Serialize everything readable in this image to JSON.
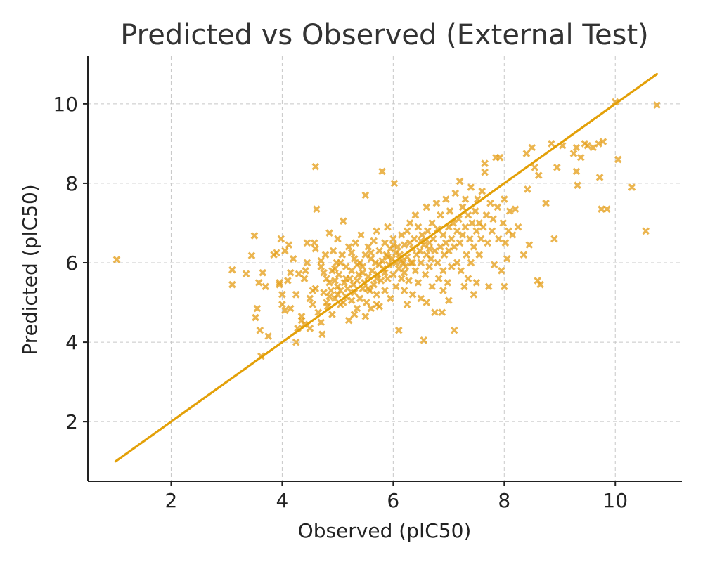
{
  "chart_data": {
    "type": "scatter",
    "title": "Predicted vs Observed (External Test)",
    "xlabel": "Observed (pIC50)",
    "ylabel": "Predicted (pIC50)",
    "xlim": [
      0.5,
      11.2
    ],
    "ylim": [
      0.5,
      11.2
    ],
    "xticks": [
      2,
      4,
      6,
      8,
      10
    ],
    "yticks": [
      2,
      4,
      6,
      8,
      10
    ],
    "grid": true,
    "marker": "x",
    "colors": {
      "points": "#E6A01E",
      "line": "#E3A008"
    },
    "identity_line": {
      "x": [
        1.0,
        10.75
      ],
      "y": [
        1.0,
        10.75
      ]
    },
    "series": [
      {
        "points": [
          [
            1.02,
            6.08
          ],
          [
            3.1,
            5.82
          ],
          [
            3.1,
            5.45
          ],
          [
            3.35,
            5.72
          ],
          [
            3.45,
            6.18
          ],
          [
            3.5,
            6.68
          ],
          [
            3.52,
            4.62
          ],
          [
            3.55,
            4.85
          ],
          [
            3.58,
            5.5
          ],
          [
            3.6,
            4.3
          ],
          [
            3.62,
            3.65
          ],
          [
            3.65,
            5.75
          ],
          [
            3.7,
            5.4
          ],
          [
            3.75,
            4.15
          ],
          [
            3.85,
            6.2
          ],
          [
            3.9,
            6.25
          ],
          [
            3.95,
            5.5
          ],
          [
            3.98,
            6.6
          ],
          [
            4.0,
            4.95
          ],
          [
            4.0,
            5.2
          ],
          [
            4.05,
            6.3
          ],
          [
            4.05,
            4.8
          ],
          [
            4.1,
            5.55
          ],
          [
            4.12,
            6.45
          ],
          [
            4.15,
            5.75
          ],
          [
            4.15,
            4.85
          ],
          [
            4.2,
            6.1
          ],
          [
            4.25,
            4.0
          ],
          [
            4.28,
            4.35
          ],
          [
            4.3,
            5.72
          ],
          [
            4.35,
            4.55
          ],
          [
            4.35,
            4.65
          ],
          [
            4.4,
            4.45
          ],
          [
            4.42,
            5.8
          ],
          [
            4.45,
            6.0
          ],
          [
            4.5,
            5.1
          ],
          [
            4.5,
            4.35
          ],
          [
            4.55,
            5.3
          ],
          [
            4.58,
            6.5
          ],
          [
            4.6,
            5.35
          ],
          [
            4.6,
            8.42
          ],
          [
            4.62,
            7.35
          ],
          [
            4.65,
            4.75
          ],
          [
            4.7,
            6.05
          ],
          [
            4.7,
            4.5
          ],
          [
            4.72,
            4.2
          ],
          [
            4.75,
            5.25
          ],
          [
            4.78,
            6.2
          ],
          [
            4.8,
            5.6
          ],
          [
            4.8,
            5.0
          ],
          [
            4.82,
            4.9
          ],
          [
            4.85,
            6.75
          ],
          [
            4.85,
            5.5
          ],
          [
            4.88,
            5.3
          ],
          [
            4.9,
            4.7
          ],
          [
            4.9,
            5.8
          ],
          [
            4.92,
            6.3
          ],
          [
            4.95,
            5.1
          ],
          [
            4.95,
            5.55
          ],
          [
            4.98,
            6.0
          ],
          [
            5.0,
            5.2
          ],
          [
            5.0,
            5.4
          ],
          [
            5.0,
            6.6
          ],
          [
            5.02,
            5.7
          ],
          [
            5.05,
            4.95
          ],
          [
            5.05,
            5.3
          ],
          [
            5.08,
            6.2
          ],
          [
            5.1,
            5.0
          ],
          [
            5.1,
            7.05
          ],
          [
            5.12,
            5.5
          ],
          [
            5.15,
            5.9
          ],
          [
            5.15,
            5.15
          ],
          [
            5.18,
            5.35
          ],
          [
            5.2,
            6.4
          ],
          [
            5.2,
            4.55
          ],
          [
            5.22,
            5.6
          ],
          [
            5.25,
            5.8
          ],
          [
            5.25,
            5.05
          ],
          [
            5.28,
            5.45
          ],
          [
            5.3,
            6.1
          ],
          [
            5.3,
            5.25
          ],
          [
            5.32,
            6.5
          ],
          [
            5.35,
            5.55
          ],
          [
            5.35,
            4.85
          ],
          [
            5.38,
            5.7
          ],
          [
            5.4,
            6.0
          ],
          [
            5.4,
            5.1
          ],
          [
            5.42,
            6.7
          ],
          [
            5.45,
            5.35
          ],
          [
            5.45,
            5.9
          ],
          [
            5.48,
            5.5
          ],
          [
            5.5,
            6.2
          ],
          [
            5.5,
            7.7
          ],
          [
            5.52,
            5.0
          ],
          [
            5.55,
            5.65
          ],
          [
            5.55,
            6.4
          ],
          [
            5.58,
            5.3
          ],
          [
            5.6,
            6.1
          ],
          [
            5.6,
            4.85
          ],
          [
            5.62,
            5.8
          ],
          [
            5.65,
            6.55
          ],
          [
            5.65,
            5.45
          ],
          [
            5.68,
            6.0
          ],
          [
            5.7,
            5.2
          ],
          [
            5.7,
            6.8
          ],
          [
            5.72,
            5.7
          ],
          [
            5.75,
            6.3
          ],
          [
            5.75,
            4.9
          ],
          [
            5.78,
            5.55
          ],
          [
            5.8,
            6.05
          ],
          [
            5.8,
            8.3
          ],
          [
            5.82,
            5.85
          ],
          [
            5.85,
            6.5
          ],
          [
            5.85,
            5.3
          ],
          [
            5.88,
            6.2
          ],
          [
            5.9,
            5.6
          ],
          [
            5.9,
            6.9
          ],
          [
            5.92,
            5.95
          ],
          [
            5.95,
            6.35
          ],
          [
            5.95,
            5.1
          ],
          [
            5.98,
            6.1
          ],
          [
            6.0,
            5.7
          ],
          [
            6.0,
            6.6
          ],
          [
            6.02,
            8.0
          ],
          [
            6.05,
            6.0
          ],
          [
            6.05,
            5.4
          ],
          [
            6.08,
            6.4
          ],
          [
            6.1,
            5.85
          ],
          [
            6.1,
            4.3
          ],
          [
            6.12,
            6.2
          ],
          [
            6.15,
            6.7
          ],
          [
            6.15,
            5.6
          ],
          [
            6.18,
            6.0
          ],
          [
            6.2,
            6.45
          ],
          [
            6.2,
            5.3
          ],
          [
            6.22,
            5.9
          ],
          [
            6.25,
            6.8
          ],
          [
            6.25,
            6.15
          ],
          [
            6.28,
            5.55
          ],
          [
            6.3,
            6.5
          ],
          [
            6.3,
            7.0
          ],
          [
            6.32,
            6.0
          ],
          [
            6.35,
            6.35
          ],
          [
            6.35,
            5.2
          ],
          [
            6.38,
            6.6
          ],
          [
            6.4,
            5.8
          ],
          [
            6.4,
            7.2
          ],
          [
            6.42,
            6.2
          ],
          [
            6.45,
            5.5
          ],
          [
            6.45,
            6.9
          ],
          [
            6.48,
            6.3
          ],
          [
            6.5,
            6.0
          ],
          [
            6.5,
            5.1
          ],
          [
            6.52,
            6.7
          ],
          [
            6.55,
            4.05
          ],
          [
            6.55,
            6.45
          ],
          [
            6.58,
            5.7
          ],
          [
            6.6,
            6.2
          ],
          [
            6.6,
            7.4
          ],
          [
            6.62,
            6.8
          ],
          [
            6.65,
            5.9
          ],
          [
            6.65,
            6.5
          ],
          [
            6.68,
            6.1
          ],
          [
            6.7,
            7.0
          ],
          [
            6.7,
            5.4
          ],
          [
            6.72,
            6.6
          ],
          [
            6.75,
            6.3
          ],
          [
            6.75,
            4.75
          ],
          [
            6.78,
            7.5
          ],
          [
            6.8,
            6.0
          ],
          [
            6.8,
            6.85
          ],
          [
            6.82,
            5.6
          ],
          [
            6.85,
            6.4
          ],
          [
            6.85,
            7.2
          ],
          [
            6.88,
            4.75
          ],
          [
            6.9,
            6.7
          ],
          [
            6.9,
            5.8
          ],
          [
            6.92,
            6.2
          ],
          [
            6.95,
            7.6
          ],
          [
            6.95,
            6.5
          ],
          [
            6.98,
            5.5
          ],
          [
            7.0,
            6.9
          ],
          [
            7.0,
            6.3
          ],
          [
            7.02,
            7.3
          ],
          [
            7.05,
            6.6
          ],
          [
            7.05,
            5.9
          ],
          [
            7.08,
            7.0
          ],
          [
            7.1,
            6.4
          ],
          [
            7.1,
            4.3
          ],
          [
            7.12,
            7.75
          ],
          [
            7.15,
            6.8
          ],
          [
            7.15,
            6.0
          ],
          [
            7.18,
            7.1
          ],
          [
            7.2,
            6.5
          ],
          [
            7.2,
            8.05
          ],
          [
            7.22,
            5.8
          ],
          [
            7.25,
            7.4
          ],
          [
            7.25,
            6.7
          ],
          [
            7.28,
            5.4
          ],
          [
            7.3,
            6.9
          ],
          [
            7.3,
            7.6
          ],
          [
            7.32,
            6.2
          ],
          [
            7.35,
            7.2
          ],
          [
            7.35,
            5.6
          ],
          [
            7.38,
            6.6
          ],
          [
            7.4,
            7.9
          ],
          [
            7.4,
            6.0
          ],
          [
            7.42,
            7.0
          ],
          [
            7.45,
            6.4
          ],
          [
            7.45,
            5.2
          ],
          [
            7.48,
            7.3
          ],
          [
            7.5,
            6.8
          ],
          [
            7.5,
            5.5
          ],
          [
            7.52,
            7.6
          ],
          [
            7.55,
            6.2
          ],
          [
            7.55,
            7.0
          ],
          [
            7.58,
            6.6
          ],
          [
            7.6,
            7.8
          ],
          [
            7.62,
            6.9
          ],
          [
            7.65,
            8.5
          ],
          [
            7.65,
            8.28
          ],
          [
            7.68,
            7.2
          ],
          [
            7.7,
            6.5
          ],
          [
            7.72,
            5.4
          ],
          [
            7.75,
            7.5
          ],
          [
            7.78,
            6.8
          ],
          [
            7.8,
            7.1
          ],
          [
            7.82,
            5.95
          ],
          [
            7.85,
            8.65
          ],
          [
            7.88,
            7.4
          ],
          [
            7.9,
            6.6
          ],
          [
            7.92,
            8.65
          ],
          [
            7.95,
            5.8
          ],
          [
            7.98,
            7.0
          ],
          [
            8.0,
            5.4
          ],
          [
            8.0,
            7.6
          ],
          [
            8.02,
            6.5
          ],
          [
            8.05,
            6.1
          ],
          [
            8.08,
            6.8
          ],
          [
            8.1,
            7.3
          ],
          [
            8.15,
            6.7
          ],
          [
            8.2,
            7.35
          ],
          [
            8.25,
            6.9
          ],
          [
            8.35,
            6.2
          ],
          [
            8.4,
            8.75
          ],
          [
            8.42,
            7.85
          ],
          [
            8.45,
            6.45
          ],
          [
            8.5,
            8.9
          ],
          [
            8.55,
            8.4
          ],
          [
            8.6,
            5.55
          ],
          [
            8.62,
            8.2
          ],
          [
            8.65,
            5.45
          ],
          [
            8.75,
            7.5
          ],
          [
            8.85,
            9.0
          ],
          [
            8.9,
            6.6
          ],
          [
            8.95,
            8.4
          ],
          [
            9.05,
            8.95
          ],
          [
            9.25,
            8.75
          ],
          [
            9.3,
            8.9
          ],
          [
            9.3,
            8.3
          ],
          [
            9.32,
            7.95
          ],
          [
            9.38,
            8.65
          ],
          [
            9.45,
            9.0
          ],
          [
            9.5,
            8.95
          ],
          [
            9.6,
            8.9
          ],
          [
            9.7,
            9.0
          ],
          [
            9.72,
            8.15
          ],
          [
            9.75,
            7.35
          ],
          [
            9.78,
            9.05
          ],
          [
            9.85,
            7.35
          ],
          [
            10.0,
            10.05
          ],
          [
            10.05,
            8.6
          ],
          [
            10.3,
            7.9
          ],
          [
            10.55,
            6.8
          ],
          [
            10.75,
            9.97
          ],
          [
            4.7,
            5.9
          ],
          [
            4.85,
            5.15
          ],
          [
            5.05,
            6.0
          ],
          [
            5.25,
            6.25
          ],
          [
            5.45,
            5.75
          ],
          [
            5.6,
            6.25
          ],
          [
            5.75,
            5.95
          ],
          [
            5.9,
            6.15
          ],
          [
            6.05,
            6.25
          ],
          [
            6.2,
            5.75
          ],
          [
            6.35,
            6.0
          ],
          [
            6.5,
            6.55
          ],
          [
            6.65,
            6.35
          ],
          [
            4.95,
            5.85
          ],
          [
            5.15,
            5.6
          ],
          [
            5.35,
            5.95
          ],
          [
            5.55,
            5.35
          ],
          [
            5.7,
            5.6
          ],
          [
            5.85,
            5.75
          ],
          [
            6.0,
            6.45
          ],
          [
            6.15,
            6.05
          ],
          [
            4.4,
            5.6
          ],
          [
            4.55,
            4.95
          ],
          [
            4.75,
            5.75
          ],
          [
            5.3,
            4.7
          ],
          [
            5.5,
            4.65
          ],
          [
            5.7,
            4.95
          ],
          [
            6.25,
            4.95
          ],
          [
            6.6,
            5.0
          ],
          [
            6.9,
            5.3
          ],
          [
            7.0,
            5.05
          ],
          [
            3.95,
            5.45
          ],
          [
            4.25,
            5.2
          ],
          [
            4.45,
            6.5
          ],
          [
            4.6,
            6.35
          ]
        ]
      }
    ]
  }
}
